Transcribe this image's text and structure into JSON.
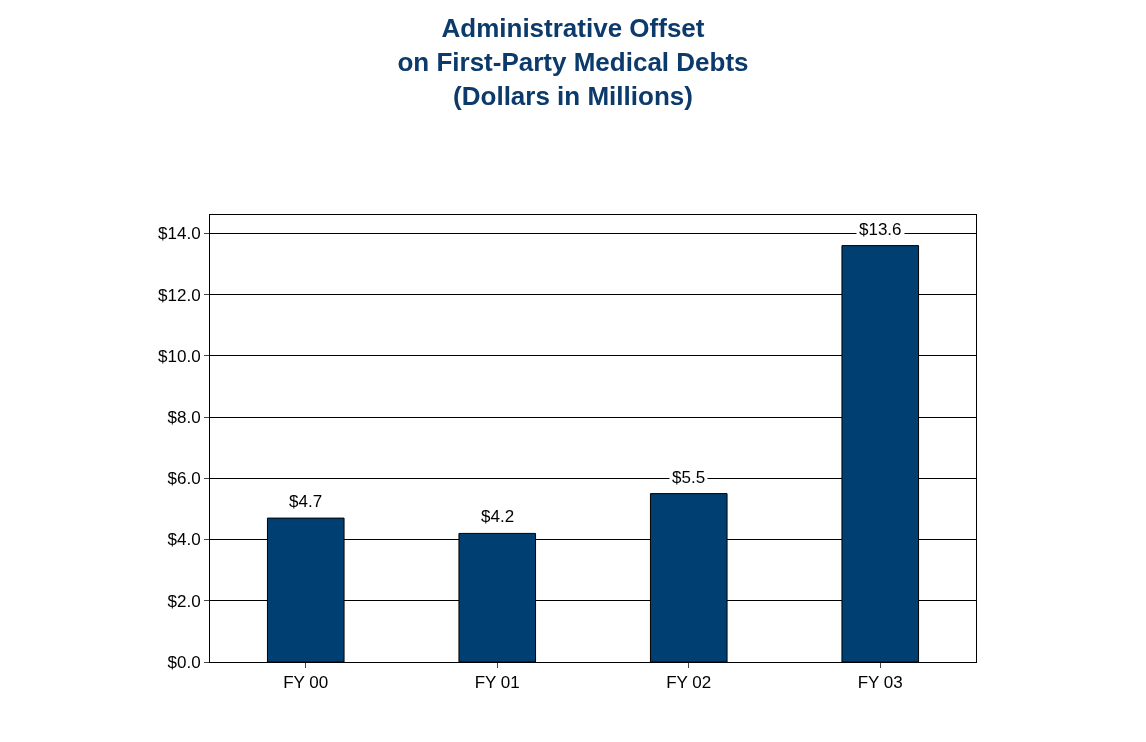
{
  "chart_data": {
    "type": "bar",
    "title": "Administrative Offset\non First-Party Medical Debts\n(Dollars in Millions)",
    "categories": [
      "FY 00",
      "FY 01",
      "FY 02",
      "FY 03"
    ],
    "values": [
      4.7,
      4.2,
      5.5,
      13.6
    ],
    "value_labels": [
      "$4.7",
      "$4.2",
      "$5.5",
      "$13.6"
    ],
    "color": "#003f72",
    "ylim": [
      0,
      14.6
    ],
    "yticks": [
      {
        "value": 0,
        "label": "$0.0"
      },
      {
        "value": 2,
        "label": "$2.0"
      },
      {
        "value": 4,
        "label": "$4.0"
      },
      {
        "value": 6,
        "label": "$6.0"
      },
      {
        "value": 8,
        "label": "$8.0"
      },
      {
        "value": 10,
        "label": "$10.0"
      },
      {
        "value": 12,
        "label": "$12.0"
      },
      {
        "value": 14,
        "label": "$14.0"
      }
    ],
    "grid": "y",
    "legend": false
  }
}
